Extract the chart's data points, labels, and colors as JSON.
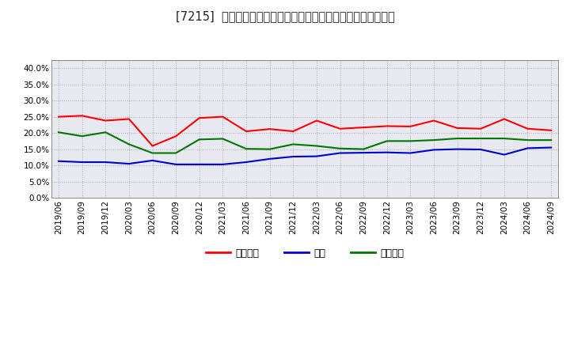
{
  "title": "[7215]  売上債権、在庫、買入債務の総資産に対する比率の推移",
  "x_labels": [
    "2019/06",
    "2019/09",
    "2019/12",
    "2020/03",
    "2020/06",
    "2020/09",
    "2020/12",
    "2021/03",
    "2021/06",
    "2021/09",
    "2021/12",
    "2022/03",
    "2022/06",
    "2022/09",
    "2022/12",
    "2023/03",
    "2023/06",
    "2023/09",
    "2023/12",
    "2024/03",
    "2024/06",
    "2024/09"
  ],
  "uriken": [
    0.25,
    0.253,
    0.238,
    0.243,
    0.16,
    0.19,
    0.246,
    0.25,
    0.205,
    0.212,
    0.205,
    0.238,
    0.213,
    0.217,
    0.221,
    0.22,
    0.238,
    0.215,
    0.213,
    0.243,
    0.213,
    0.208
  ],
  "zaiko": [
    0.113,
    0.11,
    0.11,
    0.105,
    0.115,
    0.103,
    0.103,
    0.103,
    0.11,
    0.12,
    0.127,
    0.128,
    0.138,
    0.139,
    0.14,
    0.138,
    0.148,
    0.15,
    0.149,
    0.133,
    0.153,
    0.155
  ],
  "kaiire": [
    0.202,
    0.19,
    0.202,
    0.165,
    0.138,
    0.138,
    0.18,
    0.182,
    0.151,
    0.15,
    0.165,
    0.16,
    0.152,
    0.15,
    0.175,
    0.175,
    0.178,
    0.183,
    0.183,
    0.183,
    0.178,
    0.178
  ],
  "uriken_color": "#ff0000",
  "zaiko_color": "#0000cc",
  "kaiire_color": "#007700",
  "ylim": [
    0.0,
    0.425
  ],
  "yticks": [
    0.0,
    0.05,
    0.1,
    0.15,
    0.2,
    0.25,
    0.3,
    0.35,
    0.4
  ],
  "legend_labels": [
    "売上債権",
    "在庫",
    "買入債務"
  ],
  "background_color": "#ffffff",
  "plot_bg_color": "#e8e8f0",
  "grid_color": "#aaaaaa",
  "title_fontsize": 10.5,
  "legend_fontsize": 9,
  "tick_fontsize": 7.5
}
